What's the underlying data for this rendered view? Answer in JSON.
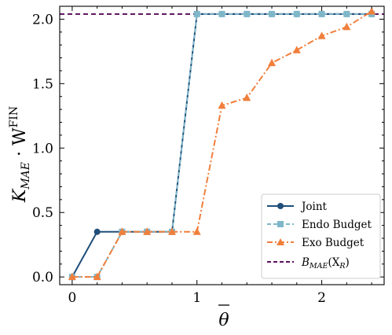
{
  "chart_data": {
    "type": "line",
    "xlabel": "θ",
    "ylabel_main": "K",
    "ylabel_sub": "MAE",
    "ylabel_dot": " · W",
    "ylabel_sup": "FIN",
    "xlim": [
      -0.1,
      2.5
    ],
    "ylim": [
      -0.06,
      2.1
    ],
    "xticks": [
      0,
      1,
      2
    ],
    "xtick_labels": [
      "0",
      "1",
      "2"
    ],
    "yticks": [
      0.0,
      0.5,
      1.0,
      1.5,
      2.0
    ],
    "ytick_labels": [
      "0.0",
      "0.5",
      "1.0",
      "1.5",
      "2.0"
    ],
    "grid": false,
    "legend_position": "lower right",
    "series": [
      {
        "name": "Joint",
        "color": "#1f4e79",
        "marker": "circle",
        "linestyle": "solid",
        "x": [
          0,
          0.2,
          0.4,
          0.6,
          0.8,
          1.0,
          1.2,
          1.4,
          1.6,
          1.8,
          2.0,
          2.2,
          2.4
        ],
        "y": [
          0.0,
          0.35,
          0.35,
          0.35,
          0.35,
          2.04,
          2.04,
          2.04,
          2.04,
          2.04,
          2.04,
          2.04,
          2.04
        ]
      },
      {
        "name": "Endo Budget",
        "color": "#7fb7c9",
        "marker": "square",
        "linestyle": "dashed",
        "x": [
          0,
          0.2,
          0.4,
          0.6,
          0.8,
          1.0,
          1.2,
          1.4,
          1.6,
          1.8,
          2.0,
          2.2,
          2.4
        ],
        "y": [
          0.0,
          0.0,
          0.35,
          0.35,
          0.35,
          2.04,
          2.04,
          2.04,
          2.04,
          2.04,
          2.04,
          2.04,
          2.04
        ]
      },
      {
        "name": "Exo Budget",
        "color": "#f07f3c",
        "marker": "triangle",
        "linestyle": "dashdot",
        "x": [
          0,
          0.2,
          0.4,
          0.6,
          0.8,
          1.0,
          1.2,
          1.4,
          1.6,
          1.8,
          2.0,
          2.2,
          2.4
        ],
        "y": [
          0.0,
          0.0,
          0.35,
          0.35,
          0.35,
          0.35,
          1.33,
          1.39,
          1.66,
          1.76,
          1.87,
          1.94,
          2.06
        ]
      }
    ],
    "hline": {
      "name_main": "B",
      "name_sub": "MAE",
      "name_arg_open": "(X",
      "name_arg_sub": "R",
      "name_arg_close": ")",
      "y": 2.04,
      "color": "#5b0f5e",
      "linestyle": "dashed"
    }
  }
}
